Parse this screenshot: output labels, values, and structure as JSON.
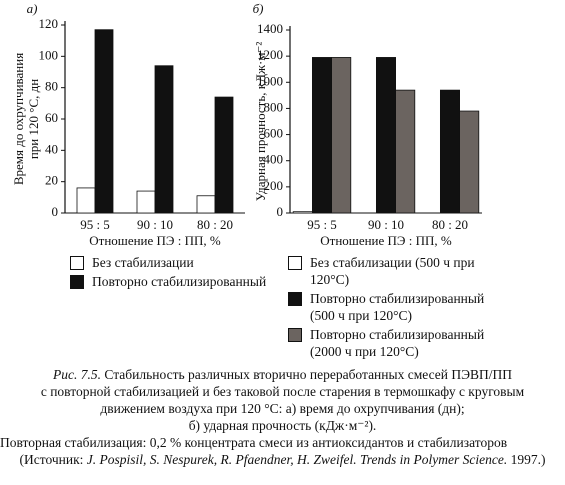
{
  "chart_data": [
    {
      "type": "bar",
      "panel": "а)",
      "ylabel": [
        "Время до охрупчивания",
        "при 120 °С, дн"
      ],
      "xlabel": "Отношение ПЭ : ПП, %",
      "categories": [
        "95 : 5",
        "90 : 10",
        "80 : 20"
      ],
      "series": [
        {
          "name": "Без стабилизации",
          "color": "#ffffff",
          "values": [
            16,
            14,
            11
          ]
        },
        {
          "name": "Повторно стабилизированный",
          "color": "#111111",
          "values": [
            117,
            94,
            74
          ]
        }
      ],
      "ylim": [
        0,
        120
      ],
      "yticks": [
        0,
        20,
        40,
        60,
        80,
        100,
        120
      ]
    },
    {
      "type": "bar",
      "panel": "б)",
      "ylabel": [
        "Ударная прочность, кДж·м⁻²"
      ],
      "xlabel": "Отношение ПЭ : ПП, %",
      "categories": [
        "95 : 5",
        "90 : 10",
        "80 : 20"
      ],
      "series": [
        {
          "name": "Без стабилизации (500 ч при 120°С)",
          "color": "#ffffff",
          "values": [
            10,
            null,
            null
          ]
        },
        {
          "name": "Повторно стабилизированный (500 ч при 120°С)",
          "color": "#111111",
          "values": [
            1190,
            1190,
            940
          ]
        },
        {
          "name": "Повторно стабилизированный (2000 ч при 120°С)",
          "color": "#6b6460",
          "values": [
            1190,
            940,
            780
          ]
        }
      ],
      "ylim": [
        0,
        1400
      ],
      "yticks": [
        0,
        200,
        400,
        600,
        800,
        1000,
        1200,
        1400
      ]
    }
  ],
  "caption": {
    "label": "Рис. 7.5.",
    "lines": [
      "Стабильность различных вторично переработанных смесей ПЭВП/ПП",
      "с повторной стабилизацией и без таковой после старения в термошкафу с круговым",
      "движением воздуха при 120 °С: а) время до охрупчивания (дн);",
      "б) ударная прочность (кДж·м⁻²)."
    ],
    "note": "Повторная стабилизация: 0,2 % концентрата смеси из антиоксидантов и стабилизаторов",
    "source": {
      "prefix": "(Источник:",
      "authors": "J. Pospisil, S. Nespurek, R. Pfaendner, H. Zweifel. Trends in Polymer Science.",
      "year": "1997.)"
    }
  }
}
